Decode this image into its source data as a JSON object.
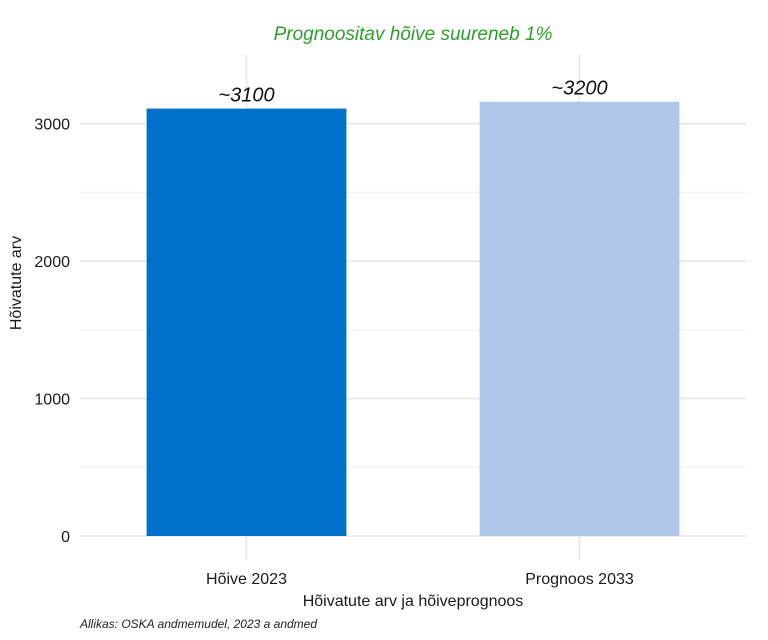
{
  "chart_data": {
    "type": "bar",
    "subtitle": "Prognoositav hõive suureneb 1%",
    "categories": [
      "Hõive 2023",
      "Prognoos 2033"
    ],
    "values": [
      3110,
      3160
    ],
    "data_labels": [
      "~3100",
      "~3200"
    ],
    "colors": [
      "#0070cc",
      "#aec7e8"
    ],
    "xlabel": "Hõivatute arv ja hõiveprognoos",
    "ylabel": "Hõivatute arv",
    "ylim": [
      0,
      3500
    ],
    "yticks": [
      0,
      1000,
      2000,
      3000
    ],
    "grid": true
  },
  "caption": "Allikas: OSKA andmemudel, 2023 a andmed",
  "subtitle_color": "#2ca02c"
}
